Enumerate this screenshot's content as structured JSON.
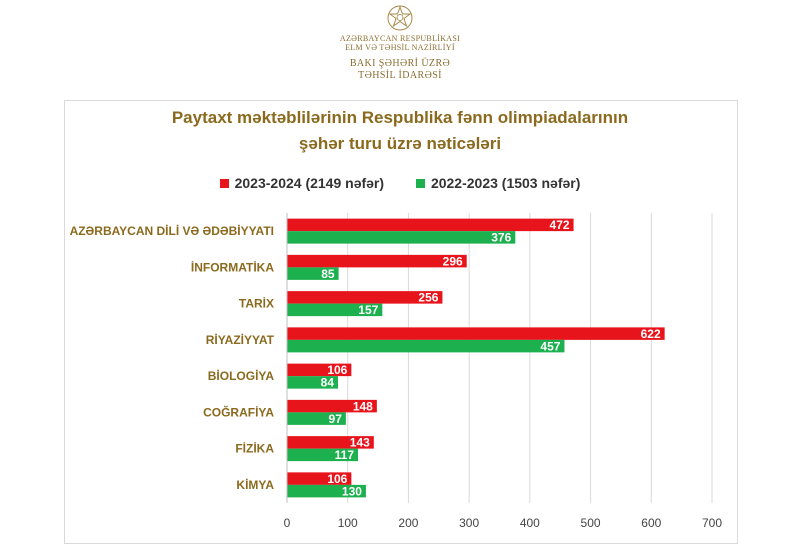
{
  "header": {
    "org_line1": "AZƏRBAYCAN RESPUBLİKASI",
    "org_line2": "ELM VƏ TƏHSİL NAZİRLİYİ",
    "dept_line1": "BAKI ŞƏHƏRİ ÜZRƏ",
    "dept_line2": "TƏHSİL İDARƏSİ",
    "emblem_icon": "star-emblem-icon"
  },
  "colors": {
    "series_2023_2024": "#e8141c",
    "series_2022_2023": "#1db04f",
    "title": "#8b6a1e",
    "grid": "#d9d9d9"
  },
  "chart_data": {
    "type": "bar",
    "orientation": "horizontal",
    "title_line1": "Paytaxt məktəblilərinin Respublika fənn olimpiadalarının",
    "title_line2": "şəhər turu üzrə nəticələri",
    "categories": [
      "AZƏRBAYCAN DİLİ VƏ ƏDƏBİYYATI",
      "İNFORMATİKA",
      "TARİX",
      "RİYAZİYYAT",
      "BİOLOGİYA",
      "COĞRAFİYA",
      "FİZİKA",
      "KİMYA"
    ],
    "series": [
      {
        "name": "2023-2024 (2149 nəfər)",
        "values": [
          472,
          296,
          256,
          622,
          106,
          148,
          143,
          106
        ]
      },
      {
        "name": "2022-2023 (1503 nəfər)",
        "values": [
          376,
          85,
          157,
          457,
          84,
          97,
          117,
          130
        ]
      }
    ],
    "xlim": [
      0,
      700
    ],
    "xticks": [
      "0",
      "100",
      "200",
      "300",
      "400",
      "500",
      "600",
      "700"
    ],
    "grid": true,
    "legend_position": "top",
    "data_labels": true
  }
}
